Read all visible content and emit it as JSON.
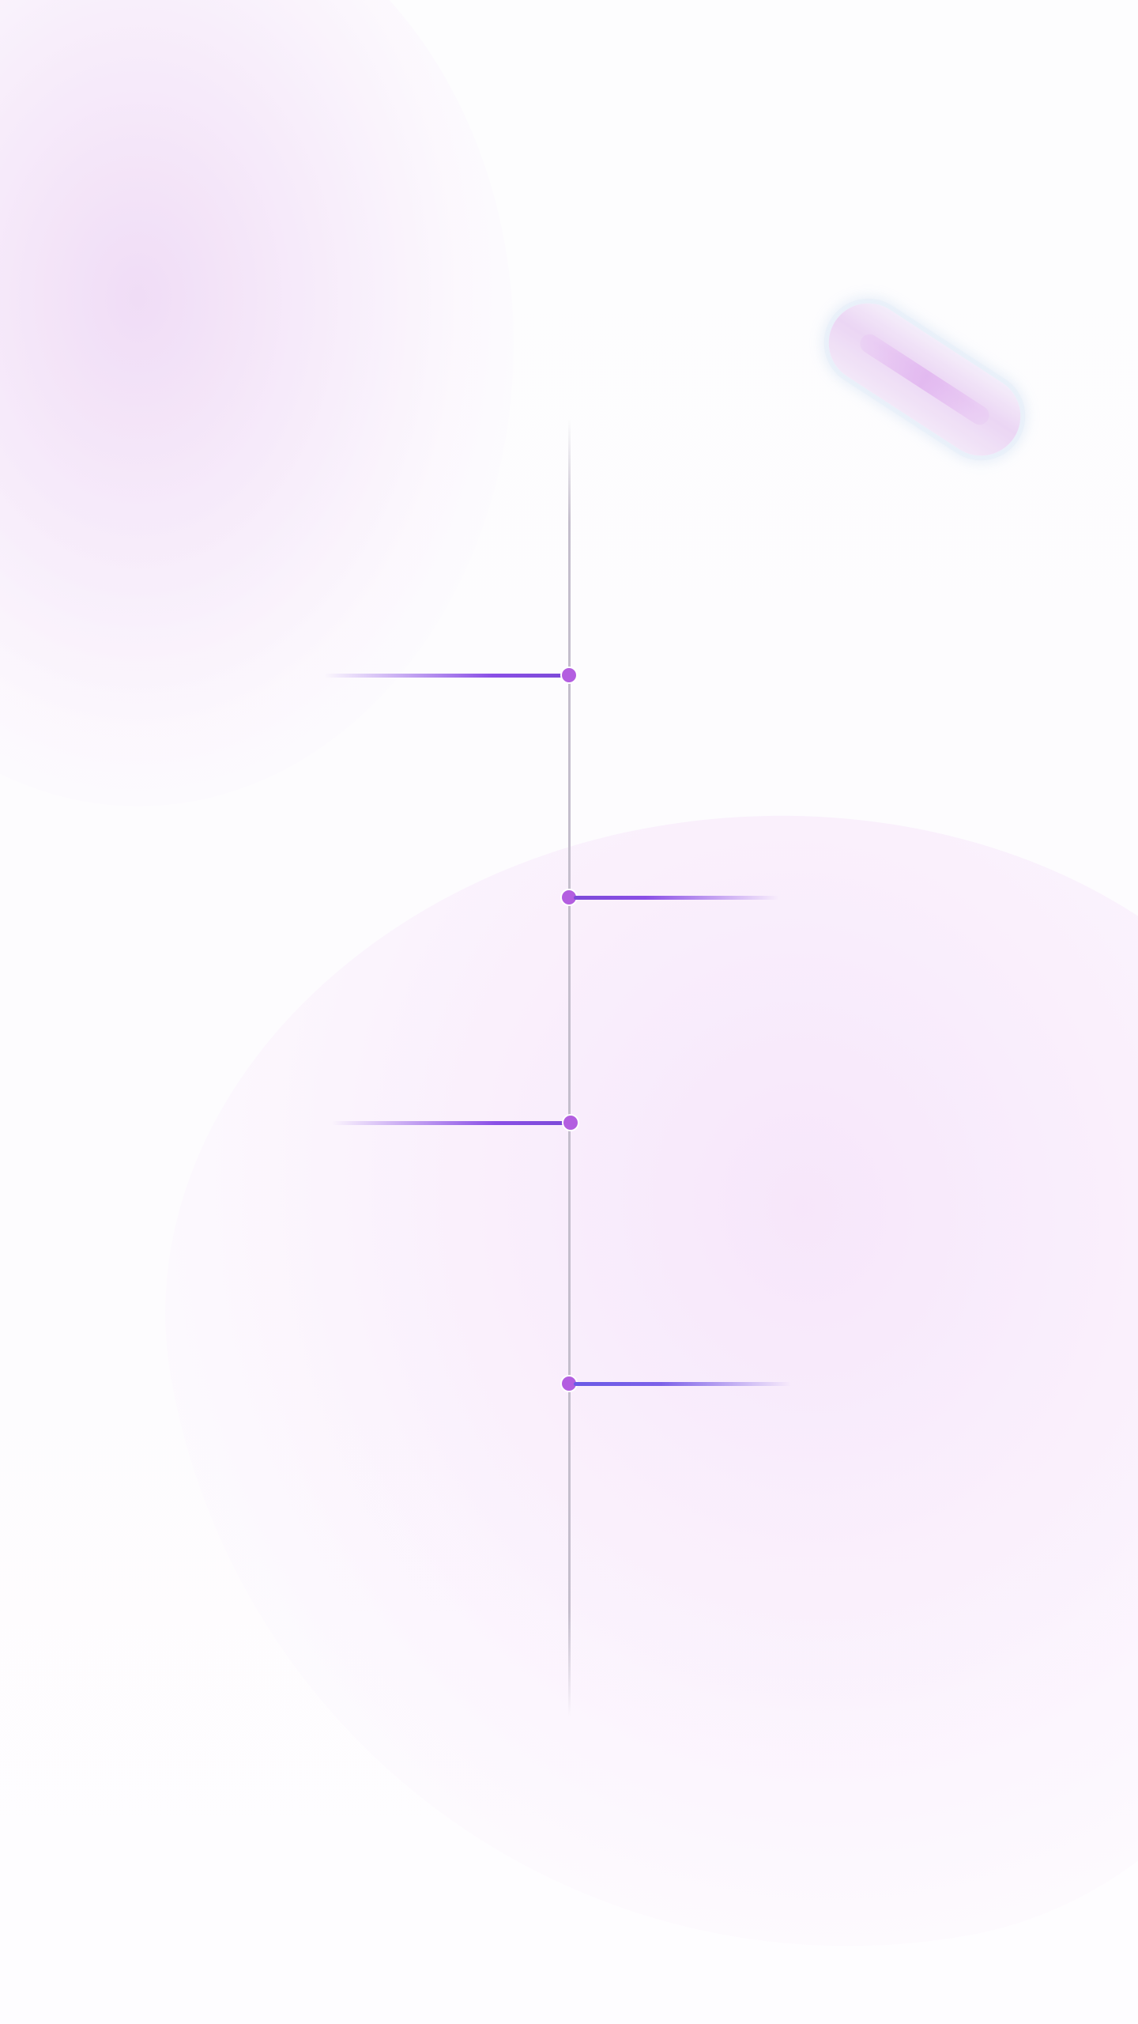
{
  "colors": {
    "background": "#fdfcfe",
    "axis": "#c4becc",
    "node": "#b35ee0",
    "connector_purple": "#8a4fe6",
    "connector_blue": "#6a5ae6",
    "blob_pink": "#f3e1f8",
    "pill": "#ead2f4"
  },
  "timeline": {
    "milestones": [
      {
        "side": "left",
        "icon": "milestone-dot-icon"
      },
      {
        "side": "right",
        "icon": "milestone-dot-icon"
      },
      {
        "side": "left",
        "icon": "milestone-dot-icon"
      },
      {
        "side": "right",
        "icon": "milestone-dot-icon"
      }
    ]
  },
  "decorations": {
    "blobs": [
      "blob-top-left",
      "blob-bottom"
    ],
    "pill_icon": "capsule-icon"
  }
}
